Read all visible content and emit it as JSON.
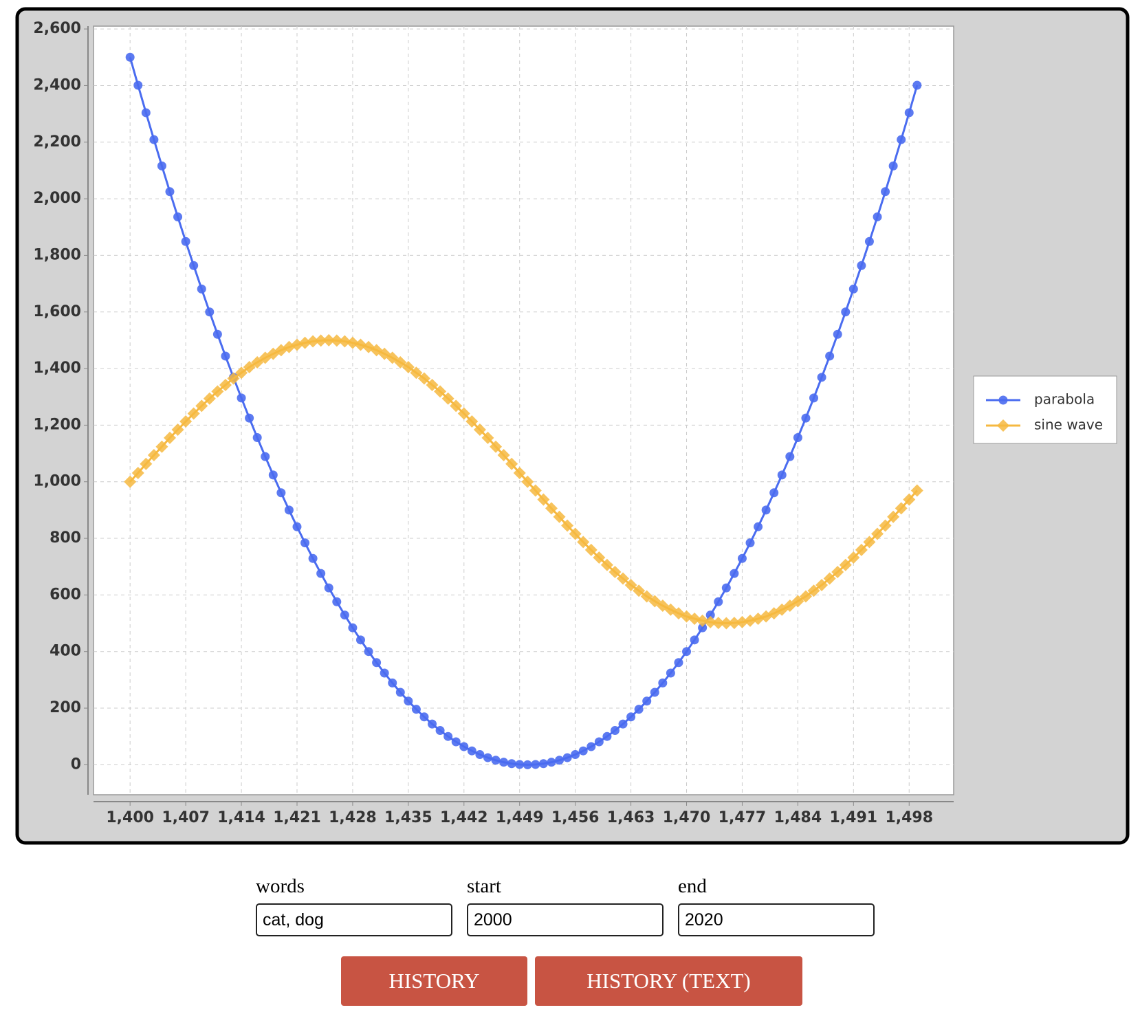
{
  "chart_data": {
    "type": "line",
    "x": [
      1400,
      1401,
      1402,
      1403,
      1404,
      1405,
      1406,
      1407,
      1408,
      1409,
      1410,
      1411,
      1412,
      1413,
      1414,
      1415,
      1416,
      1417,
      1418,
      1419,
      1420,
      1421,
      1422,
      1423,
      1424,
      1425,
      1426,
      1427,
      1428,
      1429,
      1430,
      1431,
      1432,
      1433,
      1434,
      1435,
      1436,
      1437,
      1438,
      1439,
      1440,
      1441,
      1442,
      1443,
      1444,
      1445,
      1446,
      1447,
      1448,
      1449,
      1450,
      1451,
      1452,
      1453,
      1454,
      1455,
      1456,
      1457,
      1458,
      1459,
      1460,
      1461,
      1462,
      1463,
      1464,
      1465,
      1466,
      1467,
      1468,
      1469,
      1470,
      1471,
      1472,
      1473,
      1474,
      1475,
      1476,
      1477,
      1478,
      1479,
      1480,
      1481,
      1482,
      1483,
      1484,
      1485,
      1486,
      1487,
      1488,
      1489,
      1490,
      1491,
      1492,
      1493,
      1494,
      1495,
      1496,
      1497,
      1498,
      1499
    ],
    "series": [
      {
        "name": "parabola",
        "color": "#4a6cf0",
        "marker": "circle",
        "values": [
          2500,
          2401,
          2304,
          2209,
          2116,
          2025,
          1936,
          1849,
          1764,
          1681,
          1600,
          1521,
          1444,
          1369,
          1296,
          1225,
          1156,
          1089,
          1024,
          961,
          900,
          841,
          784,
          729,
          676,
          625,
          576,
          529,
          484,
          441,
          400,
          361,
          324,
          289,
          256,
          225,
          196,
          169,
          144,
          121,
          100,
          81,
          64,
          49,
          36,
          25,
          16,
          9,
          4,
          1,
          0,
          1,
          4,
          9,
          16,
          25,
          36,
          49,
          64,
          81,
          100,
          121,
          144,
          169,
          196,
          225,
          256,
          289,
          324,
          361,
          400,
          441,
          484,
          529,
          576,
          625,
          676,
          729,
          784,
          841,
          900,
          961,
          1024,
          1089,
          1156,
          1225,
          1296,
          1369,
          1444,
          1521,
          1600,
          1681,
          1764,
          1849,
          1936,
          2025,
          2116,
          2209,
          2304,
          2401
        ]
      },
      {
        "name": "sine wave",
        "color": "#f6b840",
        "marker": "diamond",
        "values": [
          1000,
          1031,
          1063,
          1094,
          1124,
          1155,
          1184,
          1213,
          1241,
          1268,
          1294,
          1319,
          1342,
          1365,
          1385,
          1405,
          1422,
          1438,
          1452,
          1465,
          1476,
          1484,
          1491,
          1496,
          1499,
          1500,
          1499,
          1496,
          1491,
          1484,
          1476,
          1465,
          1452,
          1438,
          1422,
          1405,
          1385,
          1365,
          1342,
          1319,
          1294,
          1268,
          1241,
          1213,
          1184,
          1155,
          1124,
          1094,
          1063,
          1031,
          1000,
          969,
          937,
          906,
          876,
          845,
          816,
          787,
          759,
          732,
          706,
          681,
          658,
          635,
          615,
          595,
          578,
          562,
          548,
          535,
          524,
          516,
          509,
          504,
          501,
          500,
          501,
          504,
          509,
          516,
          524,
          535,
          548,
          562,
          578,
          595,
          615,
          635,
          658,
          681,
          706,
          732,
          759,
          787,
          816,
          845,
          876,
          906,
          937,
          969
        ]
      }
    ],
    "xlim": [
      1395.4,
      1503.6
    ],
    "ylim": [
      -106,
      2610
    ],
    "xticks": [
      {
        "value": 1400,
        "label": "1,400"
      },
      {
        "value": 1407,
        "label": "1,407"
      },
      {
        "value": 1414,
        "label": "1,414"
      },
      {
        "value": 1421,
        "label": "1,421"
      },
      {
        "value": 1428,
        "label": "1,428"
      },
      {
        "value": 1435,
        "label": "1,435"
      },
      {
        "value": 1442,
        "label": "1,442"
      },
      {
        "value": 1449,
        "label": "1,449"
      },
      {
        "value": 1456,
        "label": "1,456"
      },
      {
        "value": 1463,
        "label": "1,463"
      },
      {
        "value": 1470,
        "label": "1,470"
      },
      {
        "value": 1477,
        "label": "1,477"
      },
      {
        "value": 1484,
        "label": "1,484"
      },
      {
        "value": 1491,
        "label": "1,491"
      },
      {
        "value": 1498,
        "label": "1,498"
      }
    ],
    "yticks": [
      0,
      200,
      400,
      600,
      800,
      {
        "value": 1000,
        "label": "1,000"
      },
      {
        "value": 1200,
        "label": "1,200"
      },
      {
        "value": 1400,
        "label": "1,400"
      },
      {
        "value": 1600,
        "label": "1,600"
      },
      {
        "value": 1800,
        "label": "1,800"
      },
      {
        "value": 2000,
        "label": "2,000"
      },
      {
        "value": 2200,
        "label": "2,200"
      },
      {
        "value": 2400,
        "label": "2,400"
      },
      {
        "value": 2600,
        "label": "2,600"
      }
    ],
    "grid": true,
    "legend": "right"
  },
  "form": {
    "fields": [
      {
        "label": "words",
        "value": "cat, dog"
      },
      {
        "label": "start",
        "value": "2000"
      },
      {
        "label": "end",
        "value": "2020"
      }
    ],
    "buttons": [
      "HISTORY",
      "HISTORY (TEXT)"
    ]
  }
}
